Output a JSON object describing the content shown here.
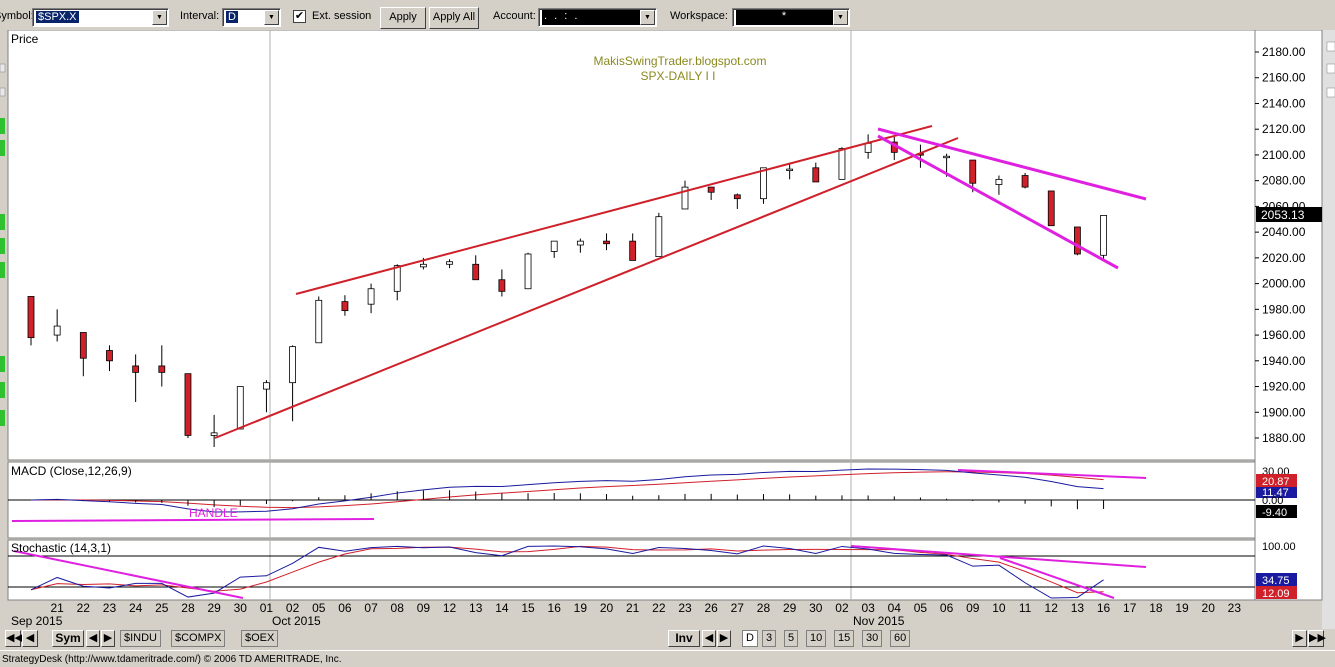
{
  "toolbar": {
    "symbol_label": "Symbol:",
    "symbol_value": "$SPX.X",
    "interval_label": "Interval:",
    "interval_value": "D",
    "ext_session_label": "Ext. session",
    "ext_session_checked": "✔",
    "apply_label": "Apply",
    "apply_all_label": "Apply All",
    "account_label": "Account:",
    "account_value": ". . : .",
    "workspace_label": "Workspace:",
    "workspace_value": "*"
  },
  "chart": {
    "price_panel_label": "Price",
    "watermark_line1": "MakisSwingTrader.blogspot.com",
    "watermark_line2": "SPX-DAILY  I I",
    "last_price": "2053.13",
    "macd_label": "MACD (Close,12,26,9)",
    "handle_label": "HANDLE",
    "macd_scale": [
      "30.00",
      "0.00"
    ],
    "macd_badges": [
      "20.87",
      "11.47",
      "-9.40"
    ],
    "stoch_label": "Stochastic (14,3,1)",
    "stoch_scale_top": "100.00",
    "stoch_badges": [
      "34.75",
      "12.09"
    ],
    "month_labels": [
      "Sep 2015",
      "Oct 2015",
      "Nov 2015"
    ],
    "colors": {
      "up": "#ffffff",
      "down": "#d0202a",
      "trendline": "#d0202a",
      "channel": "#e020e0",
      "macd": "#1a1aa0",
      "signal": "#d0202a",
      "watermark": "#8a8a20"
    }
  },
  "chart_data": {
    "type": "candlestick",
    "y_axis_ticks": [
      1880,
      1900,
      1920,
      1940,
      1960,
      1980,
      2000,
      2020,
      2040,
      2060,
      2080,
      2100,
      2120,
      2140,
      2160,
      2180
    ],
    "ylim": [
      1865,
      2195
    ],
    "x_date_labels": [
      "21",
      "22",
      "23",
      "24",
      "25",
      "28",
      "29",
      "30",
      "01",
      "02",
      "05",
      "06",
      "07",
      "08",
      "09",
      "12",
      "13",
      "14",
      "15",
      "16",
      "19",
      "20",
      "21",
      "22",
      "23",
      "26",
      "27",
      "28",
      "29",
      "30",
      "02",
      "03",
      "04",
      "05",
      "06",
      "09",
      "10",
      "11",
      "12",
      "13",
      "16",
      "17",
      "18",
      "19",
      "20",
      "23"
    ],
    "candles": [
      {
        "d": "Sep 18",
        "o": 1990,
        "h": 1990,
        "l": 1952,
        "c": 1958
      },
      {
        "d": "Sep 21",
        "o": 1960,
        "h": 1980,
        "l": 1955,
        "c": 1967
      },
      {
        "d": "Sep 22",
        "o": 1962,
        "h": 1962,
        "l": 1928,
        "c": 1942
      },
      {
        "d": "Sep 23",
        "o": 1948,
        "h": 1952,
        "l": 1932,
        "c": 1940
      },
      {
        "d": "Sep 24",
        "o": 1936,
        "h": 1945,
        "l": 1908,
        "c": 1931
      },
      {
        "d": "Sep 25",
        "o": 1936,
        "h": 1952,
        "l": 1920,
        "c": 1931
      },
      {
        "d": "Sep 28",
        "o": 1930,
        "h": 1930,
        "l": 1880,
        "c": 1882
      },
      {
        "d": "Sep 29",
        "o": 1882,
        "h": 1898,
        "l": 1873,
        "c": 1884
      },
      {
        "d": "Sep 30",
        "o": 1887,
        "h": 1920,
        "l": 1887,
        "c": 1920
      },
      {
        "d": "Oct 01",
        "o": 1918,
        "h": 1925,
        "l": 1900,
        "c": 1923
      },
      {
        "d": "Oct 02",
        "o": 1923,
        "h": 1952,
        "l": 1893,
        "c": 1951
      },
      {
        "d": "Oct 05",
        "o": 1954,
        "h": 1990,
        "l": 1954,
        "c": 1987
      },
      {
        "d": "Oct 06",
        "o": 1986,
        "h": 1991,
        "l": 1975,
        "c": 1979
      },
      {
        "d": "Oct 07",
        "o": 1984,
        "h": 2000,
        "l": 1977,
        "c": 1996
      },
      {
        "d": "Oct 08",
        "o": 1994,
        "h": 2015,
        "l": 1987,
        "c": 2014
      },
      {
        "d": "Oct 09",
        "o": 2013,
        "h": 2020,
        "l": 2011,
        "c": 2015
      },
      {
        "d": "Oct 12",
        "o": 2015,
        "h": 2019,
        "l": 2012,
        "c": 2017
      },
      {
        "d": "Oct 13",
        "o": 2015,
        "h": 2022,
        "l": 2003,
        "c": 2003
      },
      {
        "d": "Oct 14",
        "o": 2003,
        "h": 2011,
        "l": 1990,
        "c": 1994
      },
      {
        "d": "Oct 15",
        "o": 1996,
        "h": 2024,
        "l": 1996,
        "c": 2023
      },
      {
        "d": "Oct 16",
        "o": 2025,
        "h": 2033,
        "l": 2020,
        "c": 2033
      },
      {
        "d": "Oct 19",
        "o": 2030,
        "h": 2035,
        "l": 2024,
        "c": 2033
      },
      {
        "d": "Oct 20",
        "o": 2033,
        "h": 2039,
        "l": 2026,
        "c": 2031
      },
      {
        "d": "Oct 21",
        "o": 2033,
        "h": 2039,
        "l": 2018,
        "c": 2018
      },
      {
        "d": "Oct 22",
        "o": 2021,
        "h": 2055,
        "l": 2021,
        "c": 2052
      },
      {
        "d": "Oct 23",
        "o": 2058,
        "h": 2080,
        "l": 2058,
        "c": 2075
      },
      {
        "d": "Oct 26",
        "o": 2075,
        "h": 2075,
        "l": 2065,
        "c": 2071
      },
      {
        "d": "Oct 27",
        "o": 2069,
        "h": 2070,
        "l": 2058,
        "c": 2066
      },
      {
        "d": "Oct 28",
        "o": 2066,
        "h": 2090,
        "l": 2062,
        "c": 2090
      },
      {
        "d": "Oct 29",
        "o": 2088,
        "h": 2094,
        "l": 2081,
        "c": 2089
      },
      {
        "d": "Oct 30",
        "o": 2090,
        "h": 2094,
        "l": 2079,
        "c": 2079
      },
      {
        "d": "Nov 02",
        "o": 2081,
        "h": 2106,
        "l": 2081,
        "c": 2105
      },
      {
        "d": "Nov 03",
        "o": 2102,
        "h": 2116,
        "l": 2097,
        "c": 2109
      },
      {
        "d": "Nov 04",
        "o": 2110,
        "h": 2114,
        "l": 2096,
        "c": 2102
      },
      {
        "d": "Nov 05",
        "o": 2101,
        "h": 2108,
        "l": 2090,
        "c": 2100
      },
      {
        "d": "Nov 06",
        "o": 2098,
        "h": 2101,
        "l": 2083,
        "c": 2099
      },
      {
        "d": "Nov 09",
        "o": 2096,
        "h": 2096,
        "l": 2071,
        "c": 2078
      },
      {
        "d": "Nov 10",
        "o": 2077,
        "h": 2084,
        "l": 2069,
        "c": 2081
      },
      {
        "d": "Nov 11",
        "o": 2084,
        "h": 2086,
        "l": 2074,
        "c": 2075
      },
      {
        "d": "Nov 12",
        "o": 2072,
        "h": 2072,
        "l": 2045,
        "c": 2045
      },
      {
        "d": "Nov 13",
        "o": 2044,
        "h": 2044,
        "l": 2022,
        "c": 2023
      },
      {
        "d": "Nov 16",
        "o": 2022,
        "h": 2053,
        "l": 2019,
        "c": 2053
      }
    ]
  },
  "nav": {
    "sym_label": "Sym",
    "tabs": [
      "$INDU",
      "$COMPX",
      "$OEX"
    ],
    "inv_label": "Inv",
    "intervals": [
      "D",
      "3",
      "5",
      "10",
      "15",
      "30",
      "60"
    ]
  },
  "status": {
    "text": "StrategyDesk (http://www.tdameritrade.com/) © 2006 TD AMERITRADE, Inc."
  }
}
